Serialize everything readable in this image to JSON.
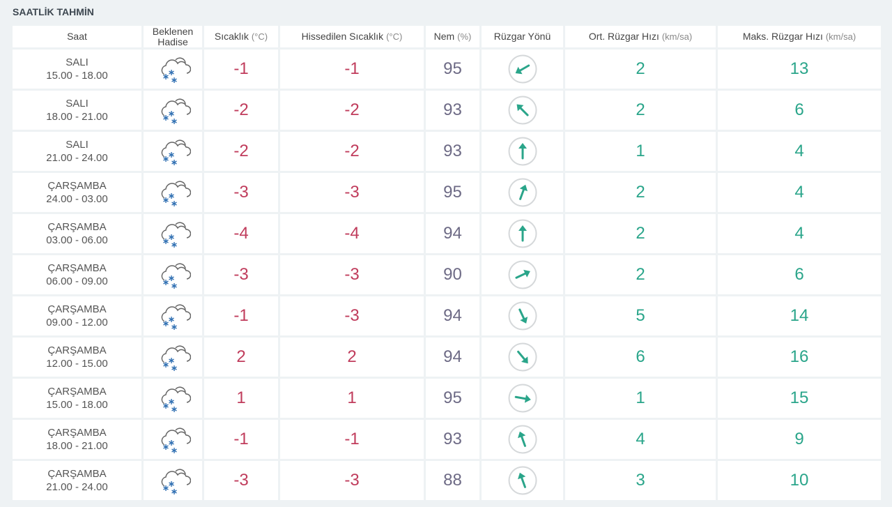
{
  "title": "SAATLİK TAHMİN",
  "table": {
    "header": [
      {
        "label": "Saat"
      },
      {
        "label": "Beklenen Hadise"
      },
      {
        "label": "Sıcaklık",
        "unit": "(°C)"
      },
      {
        "label": "Hissedilen Sıcaklık",
        "unit": "(°C)"
      },
      {
        "label": "Nem",
        "unit": "(%)"
      },
      {
        "label": "Rüzgar Yönü"
      },
      {
        "label": "Ort. Rüzgar Hızı",
        "unit": "(km/sa)"
      },
      {
        "label": "Maks. Rüzgar Hızı",
        "unit": "(km/sa)"
      }
    ],
    "rows": [
      {
        "day": "SALI",
        "time": "15.00 - 18.00",
        "temp": -1,
        "feels": -1,
        "humidity": 95,
        "wind_direction": 240,
        "wind_avg": 2,
        "wind_max": 13
      },
      {
        "day": "SALI",
        "time": "18.00 - 21.00",
        "temp": -2,
        "feels": -2,
        "humidity": 93,
        "wind_direction": 315,
        "wind_avg": 2,
        "wind_max": 6
      },
      {
        "day": "SALI",
        "time": "21.00 - 24.00",
        "temp": -2,
        "feels": -2,
        "humidity": 93,
        "wind_direction": 0,
        "wind_avg": 1,
        "wind_max": 4
      },
      {
        "day": "ÇARŞAMBA",
        "time": "24.00 - 03.00",
        "temp": -3,
        "feels": -3,
        "humidity": 95,
        "wind_direction": 20,
        "wind_avg": 2,
        "wind_max": 4
      },
      {
        "day": "ÇARŞAMBA",
        "time": "03.00 - 06.00",
        "temp": -4,
        "feels": -4,
        "humidity": 94,
        "wind_direction": 0,
        "wind_avg": 2,
        "wind_max": 4
      },
      {
        "day": "ÇARŞAMBA",
        "time": "06.00 - 09.00",
        "temp": -3,
        "feels": -3,
        "humidity": 90,
        "wind_direction": 65,
        "wind_avg": 2,
        "wind_max": 6
      },
      {
        "day": "ÇARŞAMBA",
        "time": "09.00 - 12.00",
        "temp": -1,
        "feels": -3,
        "humidity": 94,
        "wind_direction": 155,
        "wind_avg": 5,
        "wind_max": 14
      },
      {
        "day": "ÇARŞAMBA",
        "time": "12.00 - 15.00",
        "temp": 2,
        "feels": 2,
        "humidity": 94,
        "wind_direction": 140,
        "wind_avg": 6,
        "wind_max": 16
      },
      {
        "day": "ÇARŞAMBA",
        "time": "15.00 - 18.00",
        "temp": 1,
        "feels": 1,
        "humidity": 95,
        "wind_direction": 100,
        "wind_avg": 1,
        "wind_max": 15
      },
      {
        "day": "ÇARŞAMBA",
        "time": "18.00 - 21.00",
        "temp": -1,
        "feels": -1,
        "humidity": 93,
        "wind_direction": 340,
        "wind_avg": 4,
        "wind_max": 9
      },
      {
        "day": "ÇARŞAMBA",
        "time": "21.00 - 24.00",
        "temp": -3,
        "feels": -3,
        "humidity": 88,
        "wind_direction": 340,
        "wind_avg": 3,
        "wind_max": 10
      }
    ]
  }
}
